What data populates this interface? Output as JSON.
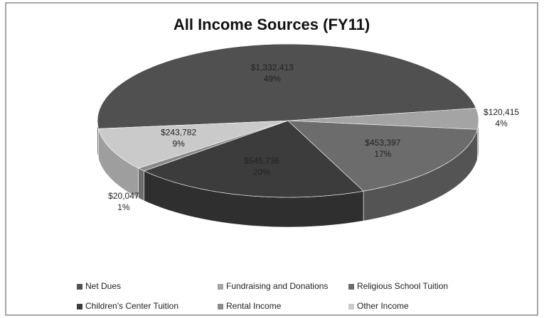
{
  "chart_data": {
    "type": "pie",
    "title": "All Income Sources (FY11)",
    "categories": [
      "Net Dues",
      "Fundraising and Donations",
      "Religious School Tuition",
      "Children's Center Tuition",
      "Rental Income",
      "Other Income"
    ],
    "values": [
      1332413,
      120415,
      453397,
      545736,
      20047,
      243782
    ],
    "value_labels": [
      "$1,332,413",
      "$120,415",
      "$453,397",
      "$545,736",
      "$20,047",
      "$243,782"
    ],
    "percent_labels": [
      "49%",
      "4%",
      "17%",
      "20%",
      "1%",
      "9%"
    ],
    "colors": [
      "#505050",
      "#a4a4a4",
      "#6c6c6c",
      "#3c3c3c",
      "#8a8a8a",
      "#cacaca"
    ],
    "legend": "bottom"
  }
}
